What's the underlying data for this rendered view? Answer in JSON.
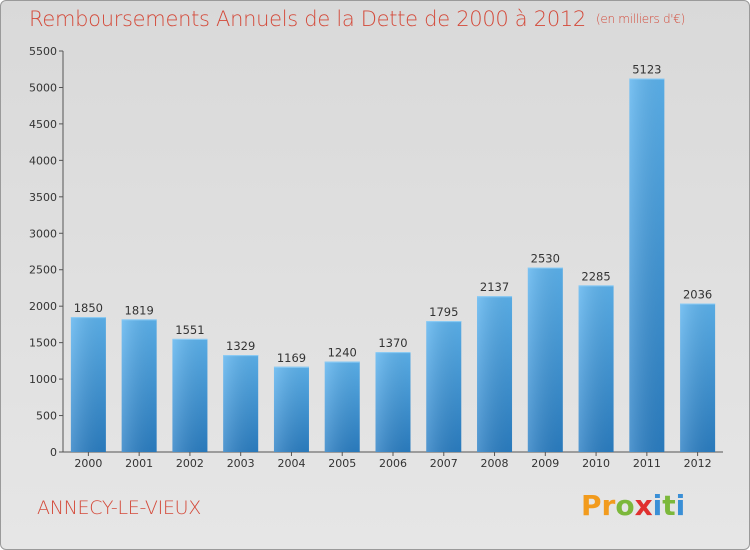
{
  "title": "Remboursements Annuels de la Dette de 2000 à 2012",
  "subtitle": "(en milliers d'€)",
  "city": "ANNECY-LE-VIEUX",
  "logo": {
    "letters": [
      "P",
      "r",
      "o",
      "x",
      "i",
      "t",
      "i"
    ],
    "colors": [
      "#f29b1d",
      "#f29b1d",
      "#7cb83b",
      "#e0302f",
      "#3a8fd6",
      "#7cb83b",
      "#3a8fd6"
    ]
  },
  "colors": {
    "bar": "#3f9ee0",
    "bar_light": "#5fb3ef",
    "bar_dark": "#2a7bc0",
    "title": "#d44a3a"
  },
  "chart_data": {
    "type": "bar",
    "title": "Remboursements Annuels de la Dette de 2000 à 2012",
    "xlabel": "",
    "ylabel": "",
    "categories": [
      "2000",
      "2001",
      "2002",
      "2003",
      "2004",
      "2005",
      "2006",
      "2007",
      "2008",
      "2009",
      "2010",
      "2011",
      "2012"
    ],
    "values": [
      1850,
      1819,
      1551,
      1329,
      1169,
      1240,
      1370,
      1795,
      2137,
      2530,
      2285,
      5123,
      2036
    ],
    "ylim": [
      0,
      5500
    ],
    "yticks": [
      0,
      500,
      1000,
      1500,
      2000,
      2500,
      3000,
      3500,
      4000,
      4500,
      5000,
      5500
    ],
    "grid": false,
    "legend": "none"
  }
}
